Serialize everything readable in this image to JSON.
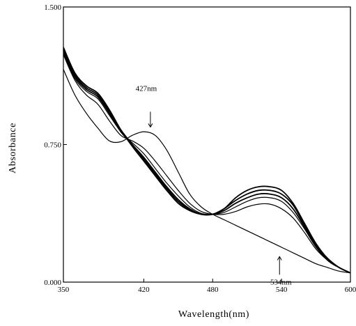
{
  "chart_data": {
    "type": "line",
    "title": "",
    "xlabel": "Wavelength(nm)",
    "ylabel": "Absorbance",
    "xlim": [
      350,
      600
    ],
    "ylim": [
      0.0,
      1.5
    ],
    "x_ticks": [
      350,
      420,
      480,
      540,
      600
    ],
    "x_tick_labels": [
      "350",
      "420",
      "480",
      "540",
      "600"
    ],
    "y_ticks": [
      0.0,
      0.75,
      1.5
    ],
    "y_tick_labels": [
      "0.000",
      "0.750",
      "1.500"
    ],
    "grid": false,
    "legend": "none",
    "series": [
      {
        "x": [
          350,
          360,
          370,
          380,
          390,
          400,
          410,
          420,
          430,
          440,
          450,
          460,
          470,
          480,
          490,
          500,
          510,
          520,
          530,
          540,
          550,
          560,
          570,
          580,
          590,
          600
        ],
        "y": [
          1.16,
          1.02,
          0.92,
          0.84,
          0.77,
          0.765,
          0.8,
          0.82,
          0.8,
          0.72,
          0.6,
          0.48,
          0.41,
          0.37,
          0.34,
          0.31,
          0.28,
          0.25,
          0.22,
          0.19,
          0.16,
          0.13,
          0.1,
          0.08,
          0.06,
          0.05
        ]
      },
      {
        "x": [
          350,
          360,
          370,
          380,
          390,
          400,
          410,
          420,
          430,
          440,
          450,
          460,
          470,
          480,
          490,
          500,
          510,
          520,
          530,
          540,
          550,
          560,
          570,
          580,
          590,
          600
        ],
        "y": [
          1.24,
          1.1,
          1.02,
          0.97,
          0.88,
          0.8,
          0.77,
          0.73,
          0.66,
          0.58,
          0.5,
          0.43,
          0.385,
          0.37,
          0.37,
          0.385,
          0.41,
          0.425,
          0.425,
          0.4,
          0.35,
          0.27,
          0.18,
          0.12,
          0.08,
          0.05
        ]
      },
      {
        "x": [
          350,
          360,
          370,
          380,
          390,
          400,
          410,
          420,
          430,
          440,
          450,
          460,
          470,
          480,
          490,
          500,
          510,
          520,
          530,
          540,
          550,
          560,
          570,
          580,
          590,
          600
        ],
        "y": [
          1.25,
          1.11,
          1.04,
          1.0,
          0.91,
          0.82,
          0.76,
          0.7,
          0.62,
          0.54,
          0.47,
          0.41,
          0.375,
          0.37,
          0.38,
          0.41,
          0.44,
          0.46,
          0.46,
          0.44,
          0.38,
          0.29,
          0.19,
          0.12,
          0.08,
          0.05
        ]
      },
      {
        "x": [
          350,
          360,
          370,
          380,
          390,
          400,
          410,
          420,
          430,
          440,
          450,
          460,
          470,
          480,
          490,
          500,
          510,
          520,
          530,
          540,
          550,
          560,
          570,
          580,
          590,
          600
        ],
        "y": [
          1.26,
          1.12,
          1.05,
          1.01,
          0.92,
          0.82,
          0.75,
          0.68,
          0.6,
          0.52,
          0.45,
          0.4,
          0.37,
          0.37,
          0.39,
          0.43,
          0.46,
          0.48,
          0.48,
          0.46,
          0.4,
          0.3,
          0.2,
          0.12,
          0.08,
          0.05
        ]
      },
      {
        "x": [
          350,
          360,
          370,
          380,
          390,
          400,
          410,
          420,
          430,
          440,
          450,
          460,
          470,
          480,
          490,
          500,
          510,
          520,
          530,
          540,
          550,
          560,
          570,
          580,
          590,
          600
        ],
        "y": [
          1.27,
          1.13,
          1.06,
          1.02,
          0.93,
          0.83,
          0.75,
          0.67,
          0.59,
          0.51,
          0.44,
          0.395,
          0.37,
          0.37,
          0.4,
          0.445,
          0.48,
          0.5,
          0.5,
          0.48,
          0.42,
          0.31,
          0.2,
          0.13,
          0.08,
          0.05
        ]
      },
      {
        "x": [
          350,
          360,
          370,
          380,
          390,
          400,
          410,
          420,
          430,
          440,
          450,
          460,
          470,
          480,
          490,
          500,
          510,
          520,
          530,
          540,
          550,
          560,
          570,
          580,
          590,
          600
        ],
        "y": [
          1.28,
          1.14,
          1.07,
          1.03,
          0.94,
          0.83,
          0.74,
          0.66,
          0.58,
          0.5,
          0.43,
          0.39,
          0.37,
          0.37,
          0.4,
          0.46,
          0.5,
          0.52,
          0.52,
          0.5,
          0.43,
          0.32,
          0.21,
          0.13,
          0.08,
          0.05
        ]
      }
    ],
    "annotations": [
      {
        "text": "427nm",
        "x": 427,
        "y": 0.83
      },
      {
        "text": "534nm",
        "x": 534,
        "y": 0.2
      }
    ]
  }
}
